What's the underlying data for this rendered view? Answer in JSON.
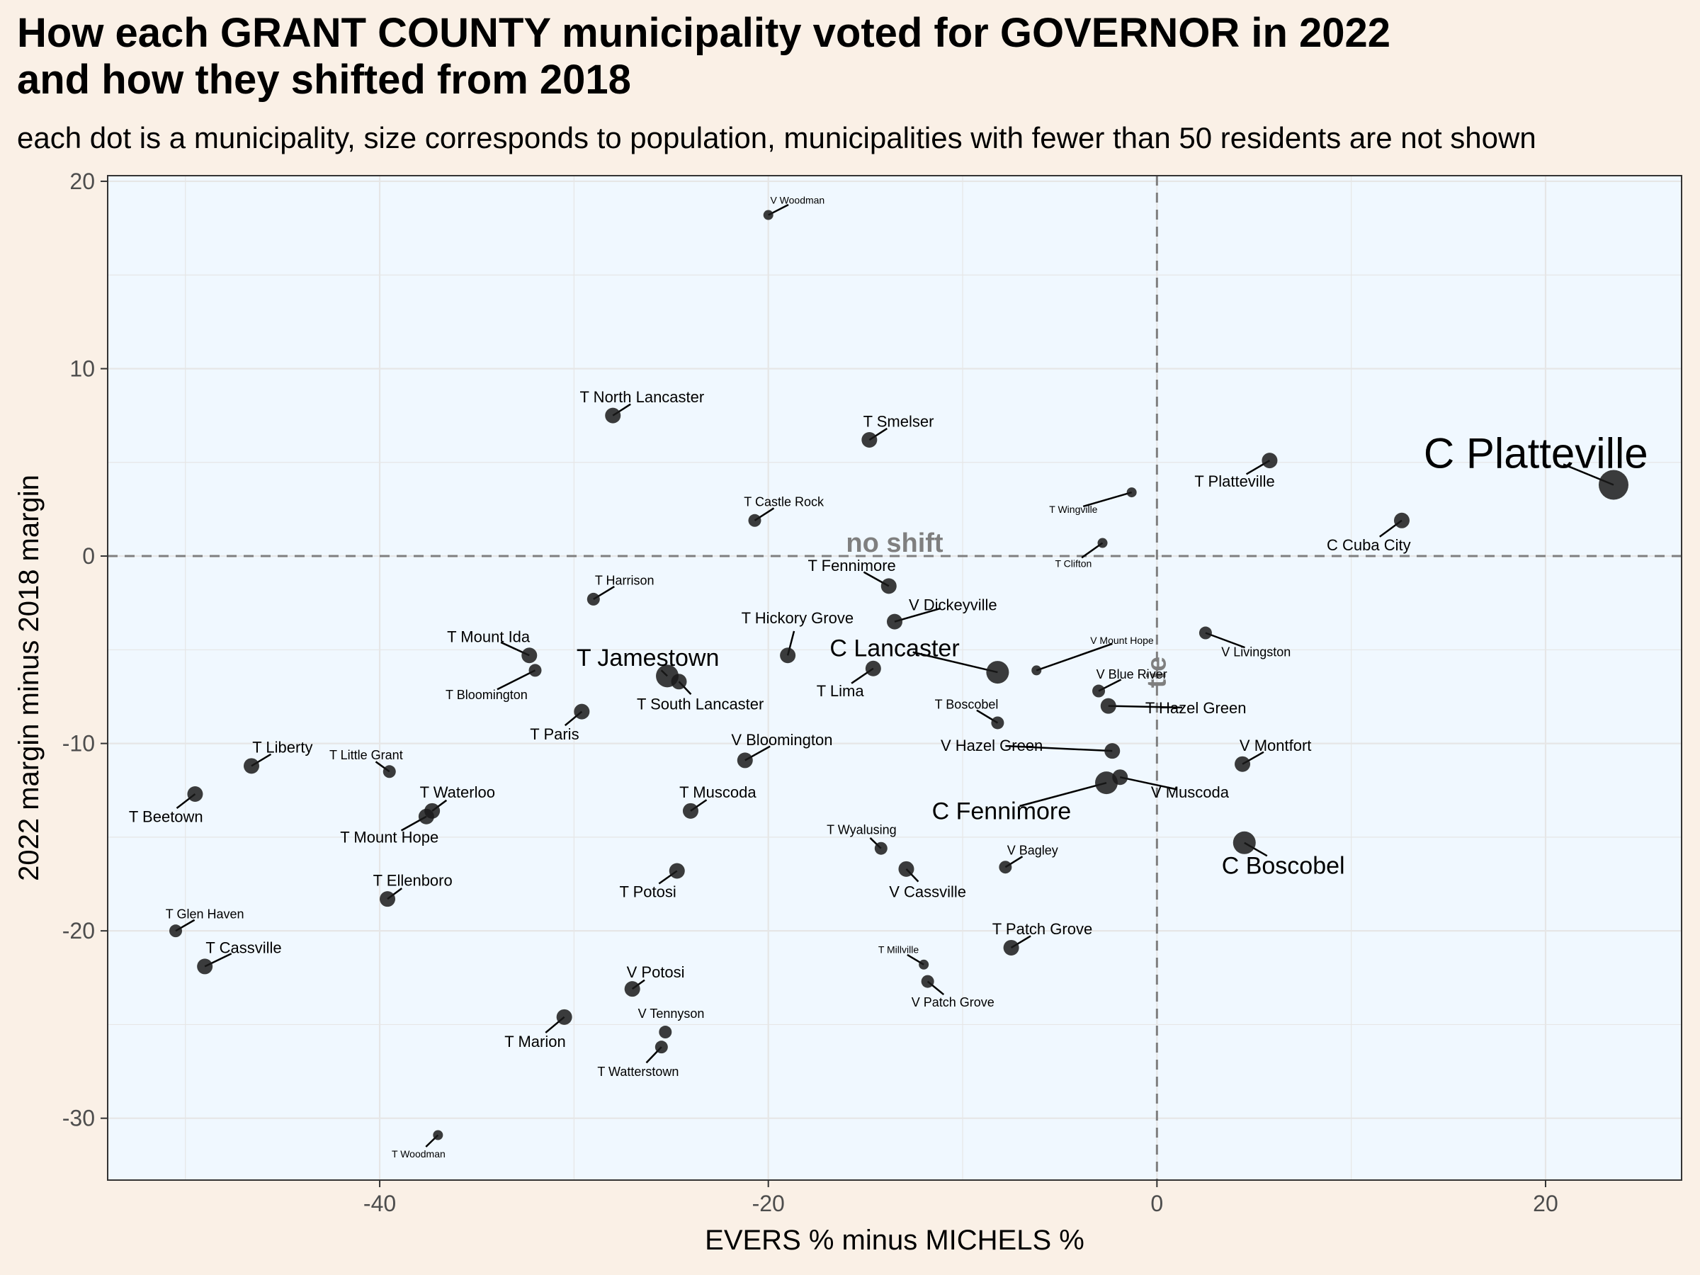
{
  "title_line1": "How each GRANT COUNTY municipality voted for GOVERNOR in 2022",
  "title_line2": "and how they shifted from 2018",
  "subtitle": "each dot is a municipality, size corresponds to population, municipalities with fewer than 50 residents are not shown",
  "chart_data": {
    "type": "scatter",
    "xlabel": "EVERS % minus MICHELS %",
    "ylabel": "2022 margin minus 2018 margin",
    "xlim": [
      -54,
      27
    ],
    "ylim": [
      -33.3,
      20.3
    ],
    "xticks": [
      -40,
      -20,
      0,
      20
    ],
    "yticks": [
      20,
      10,
      0,
      -10,
      -20,
      -30
    ],
    "xtick_labels": [
      "-40",
      "-20",
      "0",
      "20"
    ],
    "ytick_labels": [
      "20",
      "10",
      "0",
      "-10",
      "-20",
      "-30"
    ],
    "grid": true,
    "reference_lines": {
      "horizontal": {
        "y": 0,
        "label": "no shift",
        "style": "dashed"
      },
      "vertical": {
        "x": 0,
        "label": "tie",
        "style": "dashed"
      }
    },
    "point_color": "#1a1a1a",
    "panel_background": "#f0f8ff",
    "points": [
      {
        "name": "C Platteville",
        "x": 23.5,
        "y": 3.8,
        "size": 5,
        "lx": 19.5,
        "ly": 5.5
      },
      {
        "name": "C Cuba City",
        "x": 12.6,
        "y": 1.9,
        "size": 3,
        "lx": 10.9,
        "ly": 0.6
      },
      {
        "name": "T Platteville",
        "x": 5.8,
        "y": 5.1,
        "size": 3,
        "lx": 4.0,
        "ly": 4.0
      },
      {
        "name": "T Wingville",
        "x": -1.3,
        "y": 3.4,
        "size": 1,
        "lx": -4.3,
        "ly": 2.5
      },
      {
        "name": "T Clifton",
        "x": -2.8,
        "y": 0.7,
        "size": 1,
        "lx": -4.3,
        "ly": -0.4
      },
      {
        "name": "V Livingston",
        "x": 2.5,
        "y": -4.1,
        "size": 2,
        "lx": 5.1,
        "ly": -5.1
      },
      {
        "name": "V Mount Hope",
        "x": -6.2,
        "y": -6.1,
        "size": 1,
        "lx": -1.8,
        "ly": -4.5
      },
      {
        "name": "V Blue River",
        "x": -3.0,
        "y": -7.2,
        "size": 2,
        "lx": -1.3,
        "ly": -6.3
      },
      {
        "name": "T Hazel Green",
        "x": -2.5,
        "y": -8.0,
        "size": 3,
        "lx": 2.0,
        "ly": -8.1
      },
      {
        "name": "V Hazel Green",
        "x": -2.3,
        "y": -10.4,
        "size": 3,
        "lx": -8.5,
        "ly": -10.1
      },
      {
        "name": "V Muscoda",
        "x": -1.9,
        "y": -11.8,
        "size": 3,
        "lx": 1.7,
        "ly": -12.6
      },
      {
        "name": "C Fennimore",
        "x": -2.6,
        "y": -12.1,
        "size": 4,
        "lx": -8.0,
        "ly": -13.6
      },
      {
        "name": "C Lancaster",
        "x": -8.2,
        "y": -6.2,
        "size": 4,
        "lx": -13.5,
        "ly": -4.9
      },
      {
        "name": "T Boscobel",
        "x": -8.2,
        "y": -8.9,
        "size": 2,
        "lx": -9.8,
        "ly": -7.9
      },
      {
        "name": "V Dickeyville",
        "x": -13.5,
        "y": -3.5,
        "size": 3,
        "lx": -10.5,
        "ly": -2.6
      },
      {
        "name": "T Fennimore",
        "x": -13.8,
        "y": -1.6,
        "size": 3,
        "lx": -15.7,
        "ly": -0.5
      },
      {
        "name": "T Lima",
        "x": -14.6,
        "y": -6.0,
        "size": 3,
        "lx": -16.3,
        "ly": -7.2
      },
      {
        "name": "T Smelser",
        "x": -14.8,
        "y": 6.2,
        "size": 3,
        "lx": -13.3,
        "ly": 7.2
      },
      {
        "name": "V Woodman",
        "x": -20.0,
        "y": 18.2,
        "size": 1,
        "lx": -18.5,
        "ly": 19.0
      },
      {
        "name": "T Castle Rock",
        "x": -20.7,
        "y": 1.9,
        "size": 2,
        "lx": -19.2,
        "ly": 2.9
      },
      {
        "name": "T Hickory Grove",
        "x": -19.0,
        "y": -5.3,
        "size": 3,
        "lx": -18.5,
        "ly": -3.3
      },
      {
        "name": "V Bloomington",
        "x": -21.2,
        "y": -10.9,
        "size": 3,
        "lx": -19.3,
        "ly": -9.8
      },
      {
        "name": "T Muscoda",
        "x": -24.0,
        "y": -13.6,
        "size": 3,
        "lx": -22.6,
        "ly": -12.6
      },
      {
        "name": "T Wyalusing",
        "x": -14.2,
        "y": -15.6,
        "size": 2,
        "lx": -15.2,
        "ly": -14.6
      },
      {
        "name": "V Cassville",
        "x": -12.9,
        "y": -16.7,
        "size": 3,
        "lx": -11.8,
        "ly": -17.9
      },
      {
        "name": "V Bagley",
        "x": -7.8,
        "y": -16.6,
        "size": 2,
        "lx": -6.4,
        "ly": -15.7
      },
      {
        "name": "T Patch Grove",
        "x": -7.5,
        "y": -20.9,
        "size": 3,
        "lx": -5.9,
        "ly": -19.9
      },
      {
        "name": "T Millville",
        "x": -12.0,
        "y": -21.8,
        "size": 1,
        "lx": -13.3,
        "ly": -21.0
      },
      {
        "name": "V Patch Grove",
        "x": -11.8,
        "y": -22.7,
        "size": 2,
        "lx": -10.5,
        "ly": -23.8
      },
      {
        "name": "T North Lancaster",
        "x": -28.0,
        "y": 7.5,
        "size": 3,
        "lx": -26.5,
        "ly": 8.5
      },
      {
        "name": "T Harrison",
        "x": -29.0,
        "y": -2.3,
        "size": 2,
        "lx": -27.4,
        "ly": -1.3
      },
      {
        "name": "T Jamestown",
        "x": -25.2,
        "y": -6.4,
        "size": 4,
        "lx": -26.2,
        "ly": -5.4
      },
      {
        "name": "T South Lancaster",
        "x": -24.6,
        "y": -6.7,
        "size": 3,
        "lx": -23.5,
        "ly": -7.9
      },
      {
        "name": "T Paris",
        "x": -29.6,
        "y": -8.3,
        "size": 3,
        "lx": -31.0,
        "ly": -9.5
      },
      {
        "name": "T Mount Ida",
        "x": -32.3,
        "y": -5.3,
        "size": 3,
        "lx": -34.4,
        "ly": -4.3
      },
      {
        "name": "T Bloomington",
        "x": -32.0,
        "y": -6.1,
        "size": 2,
        "lx": -34.5,
        "ly": -7.4
      },
      {
        "name": "T Potosi",
        "x": -24.7,
        "y": -16.8,
        "size": 3,
        "lx": -26.2,
        "ly": -17.9
      },
      {
        "name": "V Potosi",
        "x": -27.0,
        "y": -23.1,
        "size": 3,
        "lx": -25.8,
        "ly": -22.2
      },
      {
        "name": "V Tennyson",
        "x": -25.3,
        "y": -25.4,
        "size": 2,
        "lx": -25.0,
        "ly": -24.4
      },
      {
        "name": "T Watterstown",
        "x": -25.5,
        "y": -26.2,
        "size": 2,
        "lx": -26.7,
        "ly": -27.5
      },
      {
        "name": "T Marion",
        "x": -30.5,
        "y": -24.6,
        "size": 3,
        "lx": -32.0,
        "ly": -25.9
      },
      {
        "name": "T Woodman",
        "x": -37.0,
        "y": -30.9,
        "size": 1,
        "lx": -38.0,
        "ly": -31.9
      },
      {
        "name": "T Liberty",
        "x": -46.6,
        "y": -11.2,
        "size": 3,
        "lx": -45.0,
        "ly": -10.2
      },
      {
        "name": "T Little Grant",
        "x": -39.5,
        "y": -11.5,
        "size": 2,
        "lx": -40.7,
        "ly": -10.6
      },
      {
        "name": "T Waterloo",
        "x": -37.3,
        "y": -13.6,
        "size": 3,
        "lx": -36.0,
        "ly": -12.6
      },
      {
        "name": "T Mount Hope",
        "x": -37.6,
        "y": -13.9,
        "size": 3,
        "lx": -39.5,
        "ly": -15.0
      },
      {
        "name": "T Ellenboro",
        "x": -39.6,
        "y": -18.3,
        "size": 3,
        "lx": -38.3,
        "ly": -17.3
      },
      {
        "name": "T Beetown",
        "x": -49.5,
        "y": -12.7,
        "size": 3,
        "lx": -51.0,
        "ly": -13.9
      },
      {
        "name": "T Glen Haven",
        "x": -50.5,
        "y": -20.0,
        "size": 2,
        "lx": -49.0,
        "ly": -19.1
      },
      {
        "name": "T Cassville",
        "x": -49.0,
        "y": -21.9,
        "size": 3,
        "lx": -47.0,
        "ly": -20.9
      },
      {
        "name": "C Boscobel",
        "x": 4.5,
        "y": -15.3,
        "size": 4,
        "lx": 6.5,
        "ly": -16.5
      },
      {
        "name": "V Montfort",
        "x": 4.4,
        "y": -11.1,
        "size": 3,
        "lx": 6.1,
        "ly": -10.1
      }
    ]
  }
}
